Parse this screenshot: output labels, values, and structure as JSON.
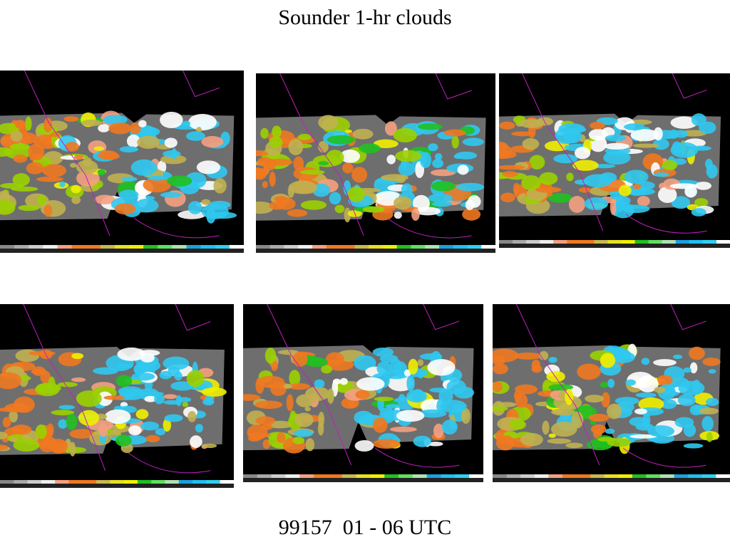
{
  "header": {
    "title": "Sounder 1-hr clouds"
  },
  "footer": {
    "caption": "99157  01 - 06 UTC"
  }
}
